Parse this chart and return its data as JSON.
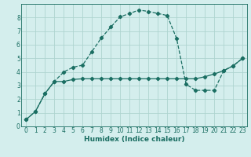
{
  "title": "",
  "xlabel": "Humidex (Indice chaleur)",
  "bg_color": "#d4eeed",
  "grid_color": "#aed4d0",
  "line_color": "#1a6e62",
  "xlim": [
    -0.5,
    23.5
  ],
  "ylim": [
    0,
    9
  ],
  "xticks": [
    0,
    1,
    2,
    3,
    4,
    5,
    6,
    7,
    8,
    9,
    10,
    11,
    12,
    13,
    14,
    15,
    16,
    17,
    18,
    19,
    20,
    21,
    22,
    23
  ],
  "yticks": [
    0,
    1,
    2,
    3,
    4,
    5,
    6,
    7,
    8
  ],
  "line1_x": [
    0,
    1,
    2,
    3,
    4,
    5,
    6,
    7,
    8,
    9,
    10,
    11,
    12,
    13,
    14,
    15,
    16,
    17,
    18,
    19,
    20,
    21,
    22,
    23
  ],
  "line1_y": [
    0.5,
    1.1,
    2.4,
    3.3,
    4.0,
    4.35,
    4.5,
    5.5,
    6.5,
    7.3,
    8.05,
    8.3,
    8.55,
    8.45,
    8.3,
    8.15,
    6.45,
    3.1,
    2.65,
    2.65,
    2.65,
    4.1,
    4.45,
    5.0
  ],
  "line2_x": [
    0,
    1,
    2,
    3,
    4,
    5,
    6,
    7,
    8,
    9,
    10,
    11,
    12,
    13,
    14,
    15,
    16,
    17,
    18,
    19,
    20,
    21,
    22,
    23
  ],
  "line2_y": [
    0.5,
    1.1,
    2.4,
    3.3,
    3.3,
    3.45,
    3.5,
    3.5,
    3.5,
    3.5,
    3.5,
    3.5,
    3.5,
    3.5,
    3.5,
    3.5,
    3.5,
    3.5,
    3.5,
    3.65,
    3.85,
    4.1,
    4.45,
    5.0
  ],
  "markersize": 2.2,
  "linewidth": 0.9,
  "fontsize_label": 6.5,
  "fontsize_tick": 5.5
}
